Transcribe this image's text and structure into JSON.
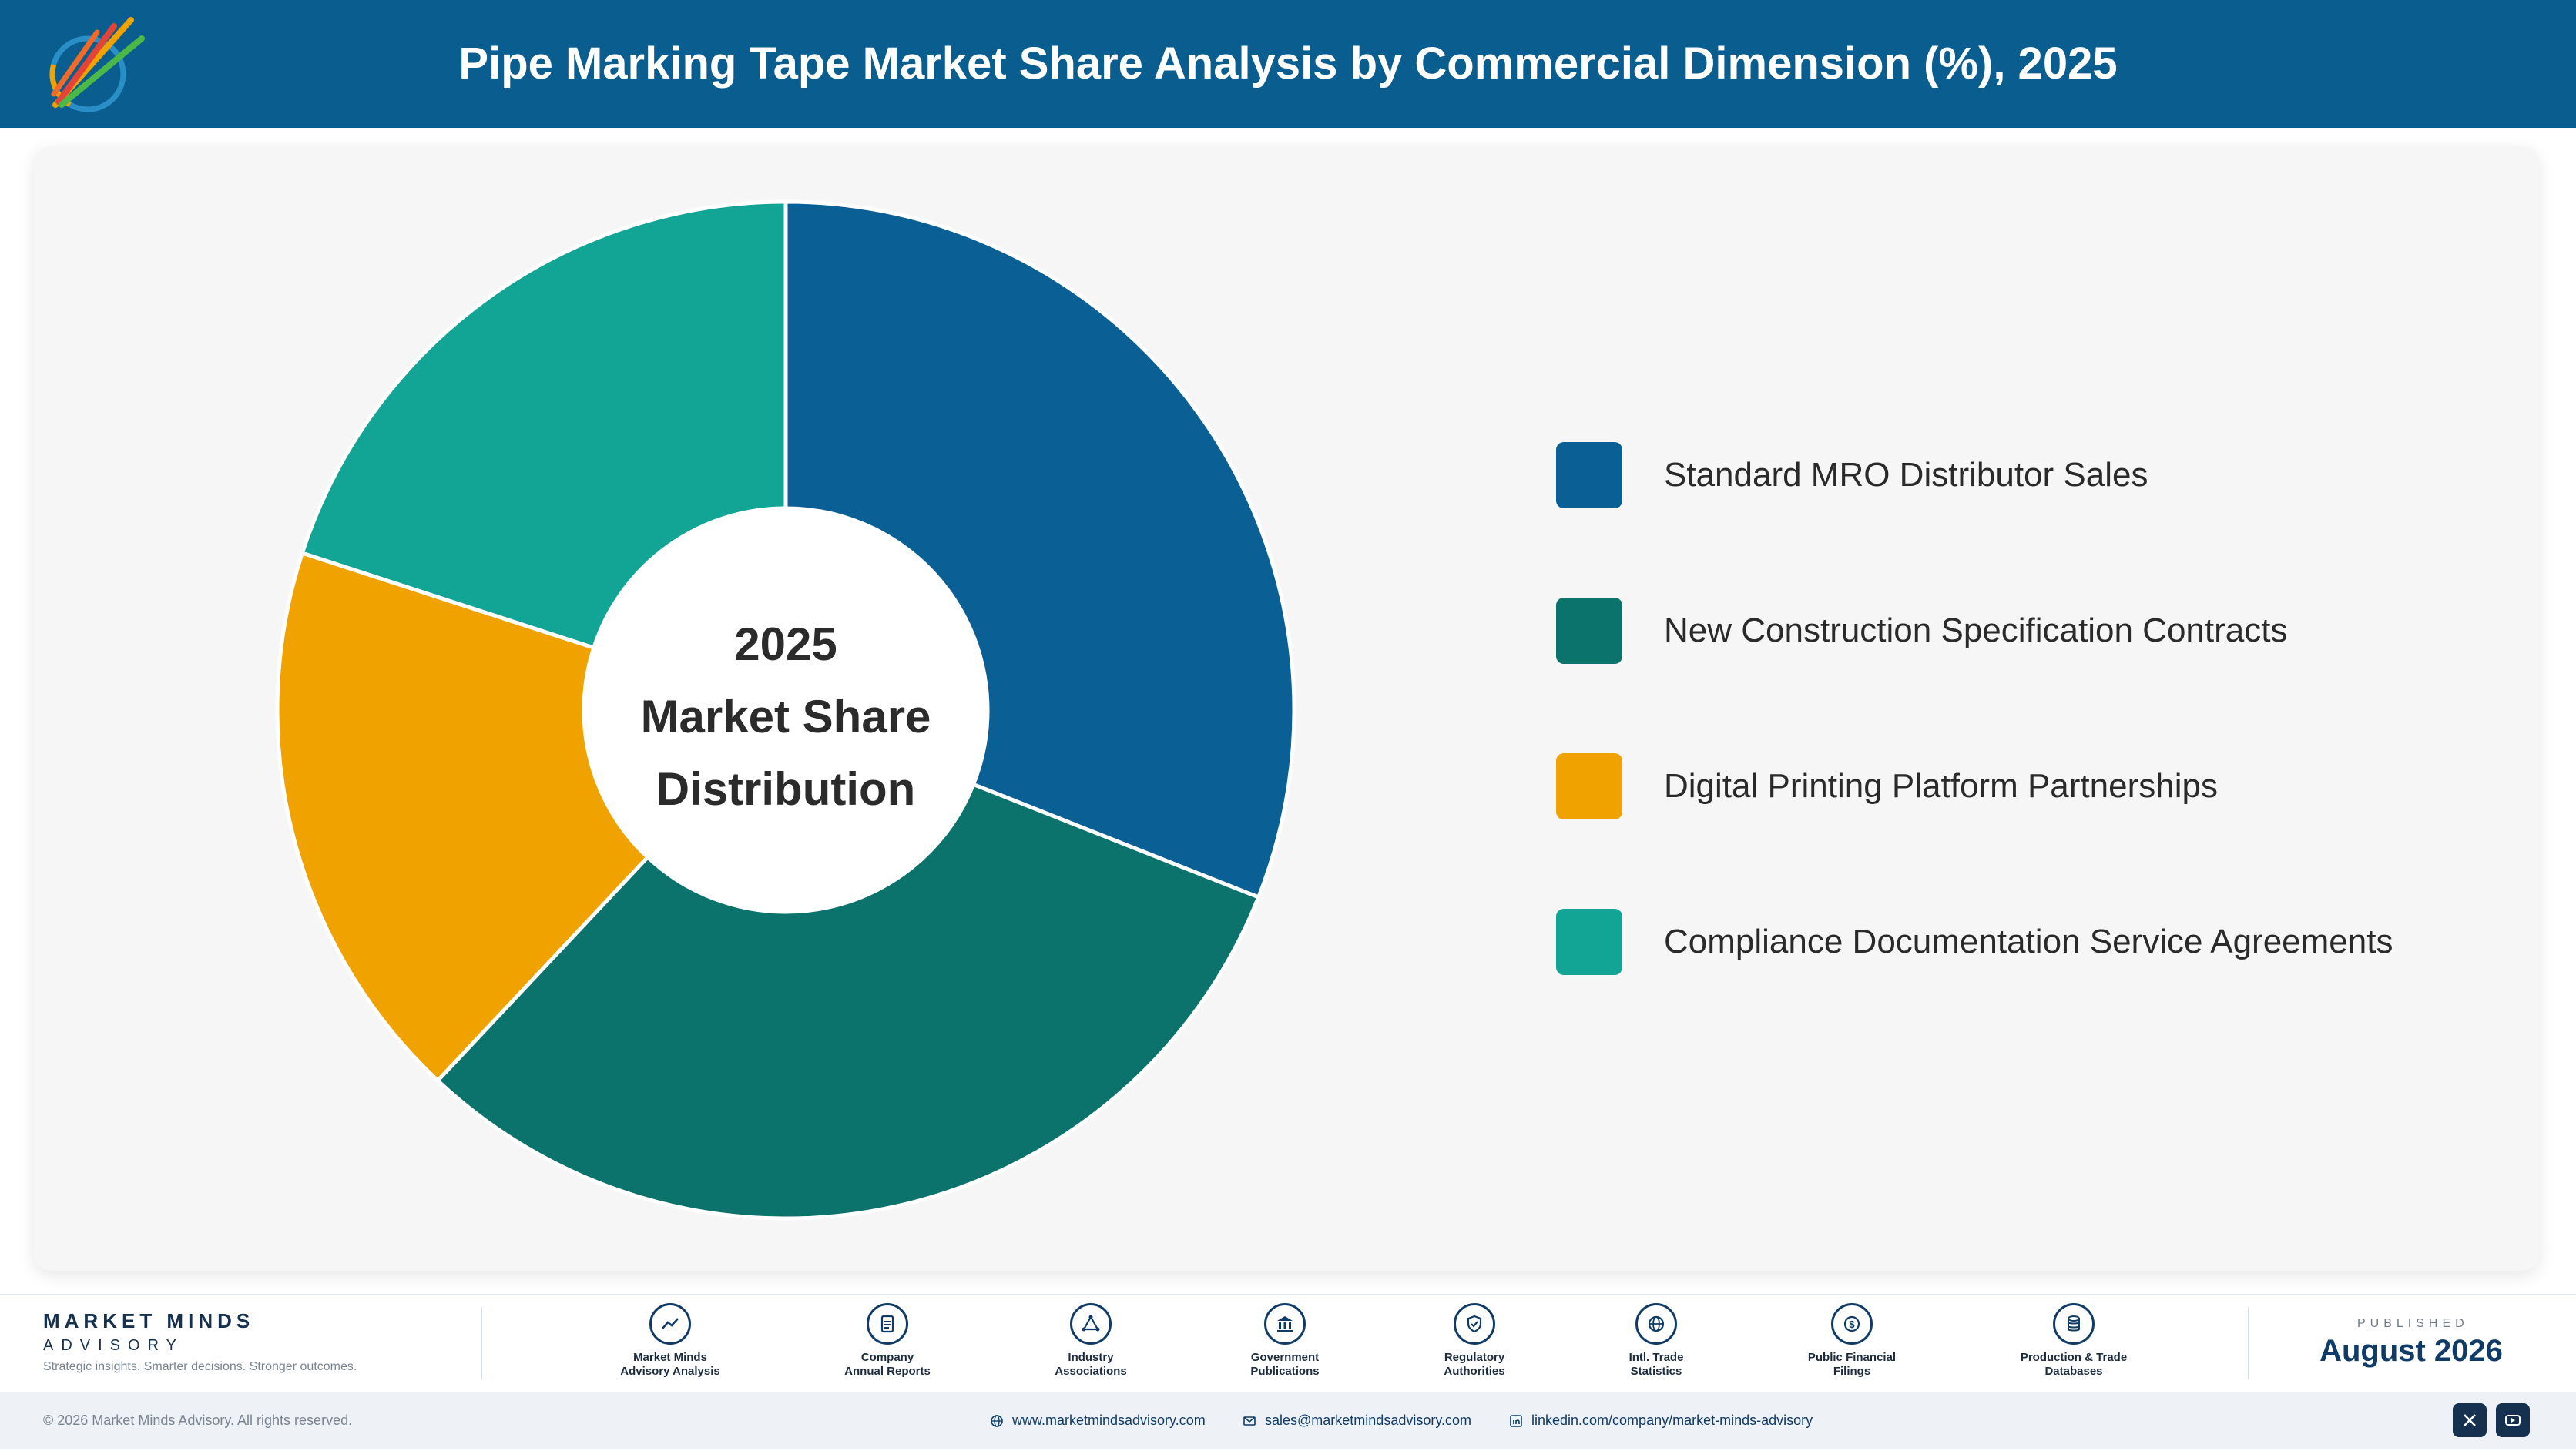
{
  "header": {
    "title": "Pipe Marking Tape Market Share Analysis by Commercial Dimension (%), 2025"
  },
  "chart_data": {
    "type": "pie",
    "center_label": [
      "2025",
      "Market Share",
      "Distribution"
    ],
    "categories": [
      "Standard MRO Distributor Sales",
      "New Construction Specification Contracts",
      "Digital Printing Platform Partnerships",
      "Compliance Documentation Service Agreements"
    ],
    "values": [
      31,
      31,
      18,
      20
    ],
    "colors": [
      "#0a5f94",
      "#0b726c",
      "#f0a300",
      "#12a595"
    ],
    "legend_position": "right"
  },
  "footer": {
    "brand_name": "MARKET MINDS",
    "brand_sub": "ADVISORY",
    "tagline": "Strategic insights. Smarter decisions. Stronger outcomes.",
    "sources": [
      {
        "icon": "trend-icon",
        "line1": "Market Minds",
        "line2": "Advisory Analysis"
      },
      {
        "icon": "document-icon",
        "line1": "Company",
        "line2": "Annual Reports"
      },
      {
        "icon": "network-icon",
        "line1": "Industry",
        "line2": "Associations"
      },
      {
        "icon": "government-building-icon",
        "line1": "Government",
        "line2": "Publications"
      },
      {
        "icon": "shield-check-icon",
        "line1": "Regulatory",
        "line2": "Authorities"
      },
      {
        "icon": "globe-icon",
        "line1": "Intl. Trade",
        "line2": "Statistics"
      },
      {
        "icon": "dollar-icon",
        "line1": "Public Financial",
        "line2": "Filings"
      },
      {
        "icon": "database-icon",
        "line1": "Production & Trade",
        "line2": "Databases"
      }
    ],
    "published_label": "PUBLISHED",
    "published_date": "August 2026",
    "copyright": "© 2026 Market Minds Advisory. All rights reserved.",
    "website": "www.marketmindsadvisory.com",
    "email": "sales@marketmindsadvisory.com",
    "linkedin": "linkedin.com/company/market-minds-advisory"
  }
}
